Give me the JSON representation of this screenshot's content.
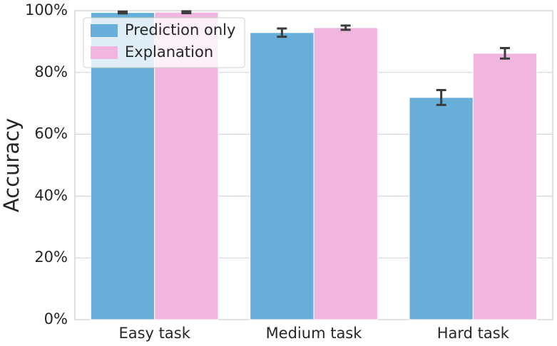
{
  "chart_data": {
    "type": "bar",
    "y_label": "Accuracy",
    "categories": [
      "Easy task",
      "Medium task",
      "Hard task"
    ],
    "series": [
      {
        "name": "Prediction only",
        "color": "#67afd8",
        "values": [
          99.4,
          92.9,
          71.9
        ],
        "errors": [
          0.3,
          1.35,
          2.4
        ]
      },
      {
        "name": "Explanation",
        "color": "#f1b6e0",
        "values": [
          99.5,
          94.5,
          86.2
        ],
        "errors": [
          0.3,
          0.7,
          1.7
        ]
      }
    ],
    "ylim": [
      0,
      100
    ],
    "yticks": [
      {
        "value": 0,
        "label": "0%"
      },
      {
        "value": 20,
        "label": "20%"
      },
      {
        "value": 40,
        "label": "40%"
      },
      {
        "value": 60,
        "label": "60%"
      },
      {
        "value": 80,
        "label": "80%"
      },
      {
        "value": 100,
        "label": "100%"
      }
    ],
    "grid": true,
    "legend": "upper-left"
  }
}
